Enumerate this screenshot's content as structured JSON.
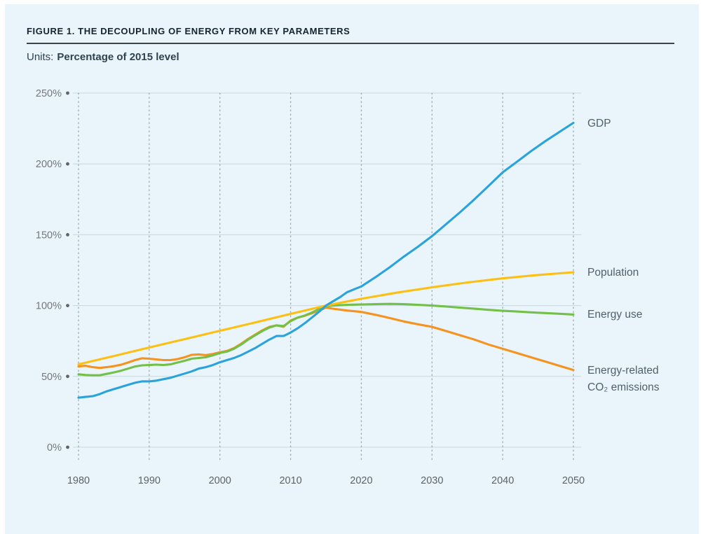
{
  "figure": {
    "title": "FIGURE 1. THE DECOUPLING OF ENERGY FROM KEY PARAMETERS",
    "units_label": "Units:",
    "units_value": "Percentage of 2015 level"
  },
  "colors": {
    "panel_background": "#e9f5fb",
    "h_gridline": "#c7d7df",
    "v_gridline": "#9fabb3",
    "tick_dot": "#616266",
    "y_tick_text": "#75777b",
    "x_tick_text": "#5f6265",
    "legend_text": "#50606b",
    "title_text": "#16242f",
    "divider": "#3f4449",
    "units_text": "#2f4250"
  },
  "chart_data": {
    "type": "line",
    "title": "FIGURE 1. THE DECOUPLING OF ENERGY FROM KEY PARAMETERS",
    "ylabel": "Percentage of 2015 level",
    "xlabel": "",
    "x_range": [
      1980,
      2050
    ],
    "y_range": [
      0,
      250
    ],
    "x_ticks": [
      1980,
      1990,
      2000,
      2010,
      2020,
      2030,
      2040,
      2050
    ],
    "y_ticks": [
      {
        "value": 0,
        "label": "0%"
      },
      {
        "value": 50,
        "label": "50%"
      },
      {
        "value": 100,
        "label": "100%"
      },
      {
        "value": 150,
        "label": "150%"
      },
      {
        "value": 200,
        "label": "200%"
      },
      {
        "value": 250,
        "label": "250%"
      }
    ],
    "grid": {
      "horizontal": "solid",
      "vertical": "dotted"
    },
    "legend_position": "right of line ends",
    "series": [
      {
        "name": "gdp",
        "label": [
          "GDP"
        ],
        "color": "#2aa3dc",
        "points": [
          [
            1980,
            35
          ],
          [
            1981,
            35.5
          ],
          [
            1982,
            36
          ],
          [
            1983,
            37.5
          ],
          [
            1984,
            39.5
          ],
          [
            1985,
            41
          ],
          [
            1986,
            42.5
          ],
          [
            1987,
            44
          ],
          [
            1988,
            45.5
          ],
          [
            1989,
            46.5
          ],
          [
            1990,
            46.5
          ],
          [
            1991,
            47
          ],
          [
            1992,
            48
          ],
          [
            1993,
            49
          ],
          [
            1994,
            50.5
          ],
          [
            1995,
            52
          ],
          [
            1996,
            53.5
          ],
          [
            1997,
            55.5
          ],
          [
            1998,
            56.5
          ],
          [
            1999,
            58
          ],
          [
            2000,
            60
          ],
          [
            2001,
            61.5
          ],
          [
            2002,
            63
          ],
          [
            2003,
            65
          ],
          [
            2004,
            67.5
          ],
          [
            2005,
            70
          ],
          [
            2006,
            73
          ],
          [
            2007,
            76
          ],
          [
            2008,
            78.5
          ],
          [
            2009,
            78.5
          ],
          [
            2010,
            81
          ],
          [
            2011,
            84
          ],
          [
            2012,
            87.5
          ],
          [
            2013,
            91.5
          ],
          [
            2014,
            95.5
          ],
          [
            2015,
            100
          ],
          [
            2016,
            103
          ],
          [
            2017,
            106
          ],
          [
            2018,
            109.5
          ],
          [
            2019,
            111.5
          ],
          [
            2020,
            113.5
          ],
          [
            2022,
            120
          ],
          [
            2024,
            127
          ],
          [
            2026,
            134.5
          ],
          [
            2028,
            141.5
          ],
          [
            2030,
            149
          ],
          [
            2032,
            157.5
          ],
          [
            2034,
            166
          ],
          [
            2036,
            175
          ],
          [
            2038,
            184.5
          ],
          [
            2040,
            194
          ],
          [
            2042,
            201.5
          ],
          [
            2044,
            209
          ],
          [
            2046,
            216
          ],
          [
            2048,
            222.5
          ],
          [
            2050,
            229
          ]
        ]
      },
      {
        "name": "population",
        "label": [
          "Population"
        ],
        "color": "#fdc012",
        "points": [
          [
            1980,
            58.5
          ],
          [
            1985,
            64.4
          ],
          [
            1990,
            70.4
          ],
          [
            1995,
            76.3
          ],
          [
            2000,
            82.2
          ],
          [
            2005,
            88.1
          ],
          [
            2010,
            94.1
          ],
          [
            2015,
            100
          ],
          [
            2020,
            104.8
          ],
          [
            2025,
            109.1
          ],
          [
            2030,
            112.9
          ],
          [
            2035,
            116.3
          ],
          [
            2040,
            119.2
          ],
          [
            2045,
            121.6
          ],
          [
            2050,
            123.5
          ]
        ]
      },
      {
        "name": "energy-use",
        "label": [
          "Energy use"
        ],
        "color": "#73c048",
        "points": [
          [
            1980,
            51.5
          ],
          [
            1981,
            51
          ],
          [
            1982,
            50.8
          ],
          [
            1983,
            50.8
          ],
          [
            1984,
            51.8
          ],
          [
            1985,
            52.8
          ],
          [
            1986,
            54
          ],
          [
            1987,
            55.5
          ],
          [
            1988,
            57
          ],
          [
            1989,
            57.8
          ],
          [
            1990,
            58
          ],
          [
            1991,
            58.3
          ],
          [
            1992,
            58
          ],
          [
            1993,
            58.5
          ],
          [
            1994,
            59.8
          ],
          [
            1995,
            61
          ],
          [
            1996,
            62.5
          ],
          [
            1997,
            63
          ],
          [
            1998,
            63.5
          ],
          [
            1999,
            64.8
          ],
          [
            2000,
            66.5
          ],
          [
            2001,
            67.5
          ],
          [
            2002,
            69.5
          ],
          [
            2003,
            72.5
          ],
          [
            2004,
            76
          ],
          [
            2005,
            79
          ],
          [
            2006,
            82
          ],
          [
            2007,
            84.5
          ],
          [
            2008,
            86
          ],
          [
            2009,
            85.5
          ],
          [
            2010,
            89
          ],
          [
            2011,
            91.5
          ],
          [
            2012,
            93
          ],
          [
            2013,
            95
          ],
          [
            2014,
            97.5
          ],
          [
            2015,
            99.5
          ],
          [
            2016,
            100
          ],
          [
            2018,
            100.5
          ],
          [
            2020,
            100.8
          ],
          [
            2022,
            101
          ],
          [
            2024,
            101.2
          ],
          [
            2026,
            101
          ],
          [
            2028,
            100.5
          ],
          [
            2030,
            100
          ],
          [
            2032,
            99.3
          ],
          [
            2034,
            98.5
          ],
          [
            2036,
            97.8
          ],
          [
            2038,
            97
          ],
          [
            2040,
            96.3
          ],
          [
            2042,
            95.8
          ],
          [
            2044,
            95.2
          ],
          [
            2046,
            94.7
          ],
          [
            2048,
            94.2
          ],
          [
            2050,
            93.7
          ]
        ]
      },
      {
        "name": "co2-emissions",
        "label": [
          "Energy-related",
          "CO₂ emissions"
        ],
        "color": "#f6921e",
        "points": [
          [
            1980,
            57
          ],
          [
            1981,
            57.5
          ],
          [
            1982,
            56.5
          ],
          [
            1983,
            56
          ],
          [
            1984,
            56.5
          ],
          [
            1985,
            57.2
          ],
          [
            1986,
            58.2
          ],
          [
            1987,
            59.8
          ],
          [
            1988,
            61.5
          ],
          [
            1989,
            62.8
          ],
          [
            1990,
            62.5
          ],
          [
            1991,
            62
          ],
          [
            1992,
            61.5
          ],
          [
            1993,
            61.5
          ],
          [
            1994,
            62.2
          ],
          [
            1995,
            63.5
          ],
          [
            1996,
            65.2
          ],
          [
            1997,
            65.5
          ],
          [
            1998,
            65
          ],
          [
            1999,
            65.8
          ],
          [
            2000,
            67
          ],
          [
            2001,
            68
          ],
          [
            2002,
            70
          ],
          [
            2003,
            73
          ],
          [
            2004,
            76.5
          ],
          [
            2005,
            79.5
          ],
          [
            2006,
            82.5
          ],
          [
            2007,
            85
          ],
          [
            2008,
            86
          ],
          [
            2009,
            85
          ],
          [
            2010,
            89.5
          ],
          [
            2011,
            91.5
          ],
          [
            2012,
            92.8
          ],
          [
            2013,
            94.5
          ],
          [
            2014,
            96.5
          ],
          [
            2015,
            98.5
          ],
          [
            2016,
            97.8
          ],
          [
            2018,
            96.5
          ],
          [
            2020,
            95.5
          ],
          [
            2022,
            93.5
          ],
          [
            2024,
            91.2
          ],
          [
            2026,
            88.8
          ],
          [
            2028,
            86.8
          ],
          [
            2030,
            85
          ],
          [
            2032,
            82
          ],
          [
            2034,
            79
          ],
          [
            2036,
            76
          ],
          [
            2038,
            72.5
          ],
          [
            2040,
            69.5
          ],
          [
            2042,
            66.5
          ],
          [
            2044,
            63.5
          ],
          [
            2046,
            60.5
          ],
          [
            2048,
            57.5
          ],
          [
            2050,
            54.5
          ]
        ]
      }
    ]
  }
}
